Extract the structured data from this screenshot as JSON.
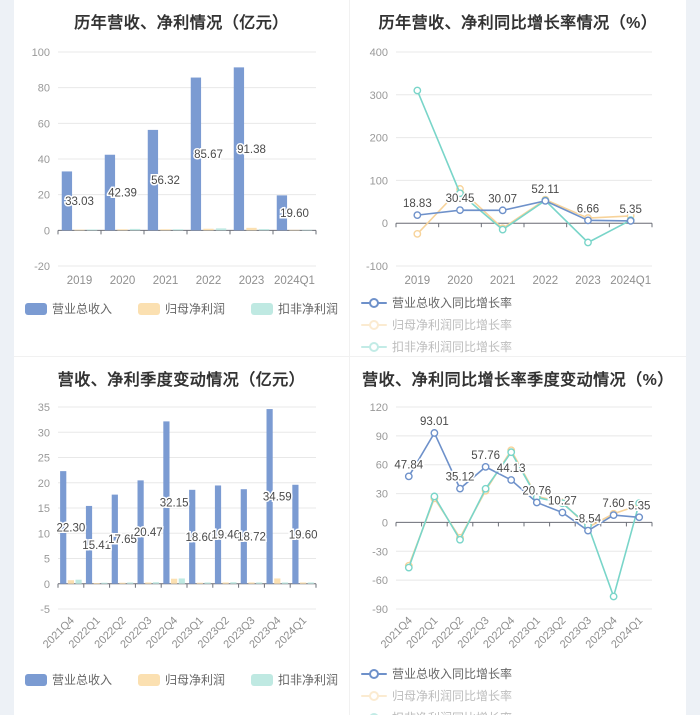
{
  "page": {
    "background": "#edf1f6",
    "panel_background": "#ffffff",
    "grid_color": "#e8e8e8",
    "zero_axis_color": "#6E7079",
    "axis_label_color": "#999999",
    "category_label_color": "#8f8f8f",
    "value_label_color": "#4a4a4a",
    "title_color": "#333333"
  },
  "chart_data": [
    {
      "type": "bar",
      "title": "历年营收、净利情况（亿元）",
      "categories": [
        "2019",
        "2020",
        "2021",
        "2022",
        "2023",
        "2024Q1"
      ],
      "ylim": [
        -20,
        100
      ],
      "ystep": 20,
      "grid": true,
      "legend_position": "bottom",
      "legend_style": "swatch",
      "rotate_labels": false,
      "series": [
        {
          "name": "营业总收入",
          "color": "#7b9bd2",
          "labeled": true,
          "values": [
            33.03,
            42.39,
            56.32,
            85.67,
            91.38,
            19.6
          ]
        },
        {
          "name": "归母净利润",
          "color": "#fbe0b1",
          "labeled": false,
          "values": [
            0.4,
            0.6,
            0.6,
            0.9,
            1.4,
            0.3
          ]
        },
        {
          "name": "扣非净利润",
          "color": "#bfe9e2",
          "labeled": false,
          "values": [
            0.5,
            0.8,
            0.6,
            1.1,
            0.7,
            0.3
          ]
        }
      ]
    },
    {
      "type": "line",
      "title": "历年营收、净利同比增长率情况（%）",
      "categories": [
        "2019",
        "2020",
        "2021",
        "2022",
        "2023",
        "2024Q1"
      ],
      "ylim": [
        -100,
        400
      ],
      "ystep": 100,
      "grid": true,
      "legend_position": "bottom",
      "legend_style": "line",
      "rotate_labels": false,
      "series": [
        {
          "name": "营业总收入同比增长率",
          "color": "#6e91ca",
          "labeled": true,
          "values": [
            18.83,
            30.45,
            30.07,
            52.11,
            6.66,
            5.35
          ]
        },
        {
          "name": "归母净利润同比增长率",
          "color": "#f7d39a",
          "labeled": false,
          "muted_legend": true,
          "values": [
            -25,
            80,
            -12,
            55,
            12,
            17
          ]
        },
        {
          "name": "扣非净利润同比增长率",
          "color": "#79d5c9",
          "labeled": false,
          "muted_legend": true,
          "values": [
            310,
            70,
            -15,
            53,
            -45,
            7
          ]
        }
      ]
    },
    {
      "type": "bar",
      "title": "营收、净利季度变动情况（亿元）",
      "categories": [
        "2021Q4",
        "2022Q1",
        "2022Q2",
        "2022Q3",
        "2022Q4",
        "2023Q1",
        "2023Q2",
        "2023Q3",
        "2023Q4",
        "2024Q1"
      ],
      "ylim": [
        -5,
        35
      ],
      "ystep": 5,
      "grid": true,
      "legend_position": "bottom",
      "legend_style": "swatch",
      "rotate_labels": true,
      "series": [
        {
          "name": "营业总收入",
          "color": "#7b9bd2",
          "labeled": true,
          "values": [
            22.3,
            15.41,
            17.65,
            20.47,
            32.15,
            18.6,
            19.46,
            18.72,
            34.59,
            19.6
          ]
        },
        {
          "name": "归母净利润",
          "color": "#fbe0b1",
          "labeled": false,
          "values": [
            0.7,
            0.15,
            0.2,
            0.25,
            1.0,
            0.2,
            0.25,
            0.25,
            1.05,
            0.25
          ]
        },
        {
          "name": "扣非净利润",
          "color": "#bfe9e2",
          "labeled": false,
          "values": [
            0.8,
            0.2,
            0.25,
            0.3,
            1.05,
            0.25,
            0.3,
            0.25,
            0.25,
            0.25
          ]
        }
      ]
    },
    {
      "type": "line",
      "title": "营收、净利同比增长率季度变动情况（%）",
      "categories": [
        "2021Q4",
        "2022Q1",
        "2022Q2",
        "2022Q3",
        "2022Q4",
        "2023Q1",
        "2023Q2",
        "2023Q3",
        "2023Q4",
        "2024Q1"
      ],
      "ylim": [
        -90,
        120
      ],
      "ystep": 30,
      "grid": true,
      "legend_position": "bottom",
      "legend_style": "line",
      "rotate_labels": true,
      "series": [
        {
          "name": "营业总收入同比增长率",
          "color": "#6e91ca",
          "labeled": true,
          "values": [
            47.84,
            93.01,
            35.12,
            57.76,
            44.13,
            20.76,
            10.27,
            -8.54,
            7.6,
            5.35
          ]
        },
        {
          "name": "归母净利润同比增长率",
          "color": "#f7d39a",
          "labeled": false,
          "muted_legend": true,
          "values": [
            -45,
            25,
            -16,
            33,
            75,
            27,
            21,
            -5,
            9,
            18
          ]
        },
        {
          "name": "扣非净利润同比增长率",
          "color": "#79d5c9",
          "labeled": false,
          "muted_legend": true,
          "values": [
            -47,
            27,
            -18,
            35,
            73,
            26,
            20,
            -3,
            -77,
            20
          ]
        }
      ]
    }
  ]
}
